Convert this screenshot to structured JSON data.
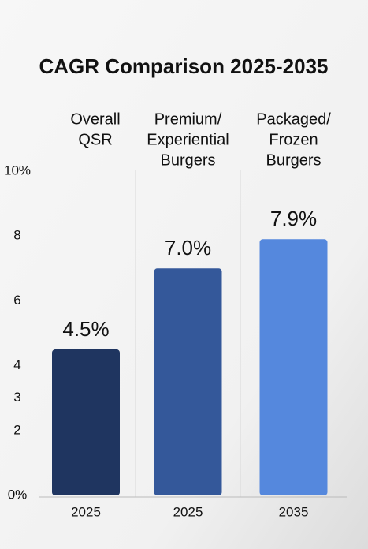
{
  "chart_data": {
    "type": "bar",
    "title": "CAGR Comparison 2025-2035",
    "group_labels": [
      [
        "Overall",
        "QSR"
      ],
      [
        "Premium/",
        "Experiential",
        "Burgers"
      ],
      [
        "Packaged/",
        "Frozen",
        "Burgers"
      ]
    ],
    "categories": [
      "2025",
      "2025",
      "2035"
    ],
    "values": [
      4.5,
      7.0,
      7.9
    ],
    "value_labels": [
      "4.5%",
      "7.0%",
      "7.9%"
    ],
    "colors": [
      "#1f3560",
      "#34589a",
      "#5588dd"
    ],
    "ylim": [
      0,
      10
    ],
    "yticks": [
      {
        "value": 10,
        "label": "10%"
      },
      8,
      6,
      4,
      3,
      2,
      {
        "value": 0,
        "label": "0%"
      }
    ]
  }
}
